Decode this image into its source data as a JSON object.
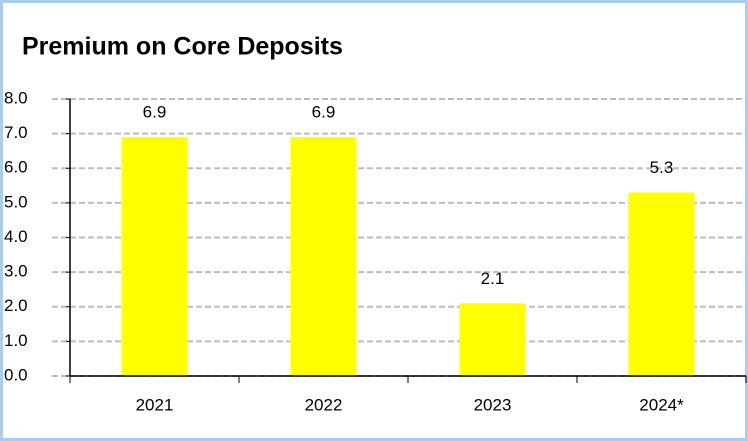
{
  "chart_data": {
    "type": "bar",
    "title": "Premium on Core Deposits",
    "categories": [
      "2021",
      "2022",
      "2023",
      "2024*"
    ],
    "values": [
      6.9,
      6.9,
      2.1,
      5.3
    ],
    "color": "#ffff00",
    "ylim": [
      0,
      8
    ],
    "yticks": [
      {
        "value": 0,
        "label": "0.0"
      },
      {
        "value": 1,
        "label": "1.0"
      },
      {
        "value": 2,
        "label": "2.0"
      },
      {
        "value": 3,
        "label": "3.0"
      },
      {
        "value": 4,
        "label": "4.0"
      },
      {
        "value": 5,
        "label": "5.0"
      },
      {
        "value": 6,
        "label": "6.0"
      },
      {
        "value": 7,
        "label": "7.0"
      },
      {
        "value": 8,
        "label": "8.0"
      }
    ],
    "grid": true
  }
}
